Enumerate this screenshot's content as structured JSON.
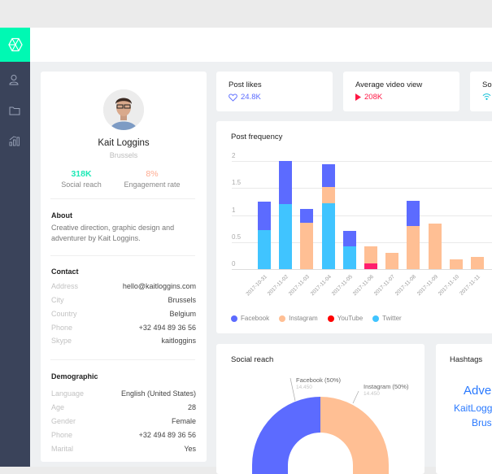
{
  "sidebar": {
    "logo": "logo-icon",
    "items": [
      {
        "name": "profile",
        "icon": "user-icon"
      },
      {
        "name": "files",
        "icon": "folder-icon"
      },
      {
        "name": "analytics",
        "icon": "chart-icon"
      }
    ]
  },
  "profile": {
    "name": "Kait Loggins",
    "city": "Brussels",
    "stats": [
      {
        "value": "318K",
        "label": "Social reach",
        "color": "#1de9b6"
      },
      {
        "value": "8%",
        "label": "Engagement rate",
        "color": "#ffab91"
      }
    ],
    "about": {
      "title": "About",
      "text": "Creative direction, graphic design and adventurer by Kait Loggins."
    },
    "contact": {
      "title": "Contact",
      "rows": [
        {
          "key": "Address",
          "value": "hello@kaitloggins.com"
        },
        {
          "key": "City",
          "value": "Brussels"
        },
        {
          "key": "Country",
          "value": "Belgium"
        },
        {
          "key": "Phone",
          "value": "+32 494 89 36 56"
        },
        {
          "key": "Skype",
          "value": "kaitloggins"
        }
      ]
    },
    "demographic": {
      "title": "Demographic",
      "rows": [
        {
          "key": "Language",
          "value": "English (United States)"
        },
        {
          "key": "Age",
          "value": "28"
        },
        {
          "key": "Gender",
          "value": "Female"
        },
        {
          "key": "Phone",
          "value": "+32 494 89 36 56"
        },
        {
          "key": "Marital",
          "value": "Yes"
        }
      ]
    }
  },
  "metrics": [
    {
      "title": "Post likes",
      "value": "24.8K",
      "icon": "heart-icon",
      "color": "#5b6cff"
    },
    {
      "title": "Average video view",
      "value": "208K",
      "icon": "play-icon",
      "color": "#ff1744"
    },
    {
      "title": "So",
      "value": "",
      "icon": "wifi-icon",
      "color": "#00bcd4"
    }
  ],
  "post_frequency": {
    "title": "Post frequency",
    "legend": [
      {
        "name": "Facebook",
        "color": "#5c6bff"
      },
      {
        "name": "Instagram",
        "color": "#ffbf94"
      },
      {
        "name": "YouTube",
        "color": "#ff0000"
      },
      {
        "name": "Twitter",
        "color": "#40c4ff"
      }
    ]
  },
  "chart_data": {
    "type": "bar",
    "stacked": true,
    "title": "Post frequency",
    "xlabel": "",
    "ylabel": "",
    "ylim": [
      0,
      2
    ],
    "yticks": [
      "0",
      "0.5",
      "1",
      "1.5",
      "2"
    ],
    "categories": [
      "2017-10-31",
      "2017-11-02",
      "2017-11-03",
      "2017-11-04",
      "2017-11-05",
      "2017-11-06",
      "2017-11-07",
      "2017-11-08",
      "2017-11-09",
      "2017-11-10",
      "2017-11-11"
    ],
    "series": [
      {
        "name": "Twitter",
        "color": "#40c4ff",
        "values": [
          0.72,
          1.2,
          0,
          1.22,
          0.42,
          0,
          0,
          0,
          0,
          0,
          0
        ]
      },
      {
        "name": "YouTube",
        "color": "#ff1f6d",
        "values": [
          0,
          0,
          0,
          0,
          0,
          0.1,
          0,
          0,
          0,
          0,
          0
        ]
      },
      {
        "name": "Instagram",
        "color": "#ffbf94",
        "values": [
          0,
          0,
          0.86,
          0.3,
          0,
          0.32,
          0.3,
          0.8,
          0.84,
          0.18,
          0.22
        ]
      },
      {
        "name": "Facebook",
        "color": "#5c6bff",
        "values": [
          0.53,
          0.8,
          0.26,
          0.42,
          0.28,
          0,
          0,
          0.46,
          0,
          0,
          0
        ]
      }
    ],
    "grid": true,
    "legend_position": "bottom"
  },
  "social_reach": {
    "title": "Social reach",
    "slices": [
      {
        "label": "Facebook (50%)",
        "value": "14.450",
        "color": "#5c6bff"
      },
      {
        "label": "Instagram (50%)",
        "value": "14.450",
        "color": "#ffbf94"
      }
    ]
  },
  "hashtags": {
    "title": "Hashtags",
    "tags": [
      "Adve",
      "KaitLogg",
      "Brus"
    ]
  }
}
